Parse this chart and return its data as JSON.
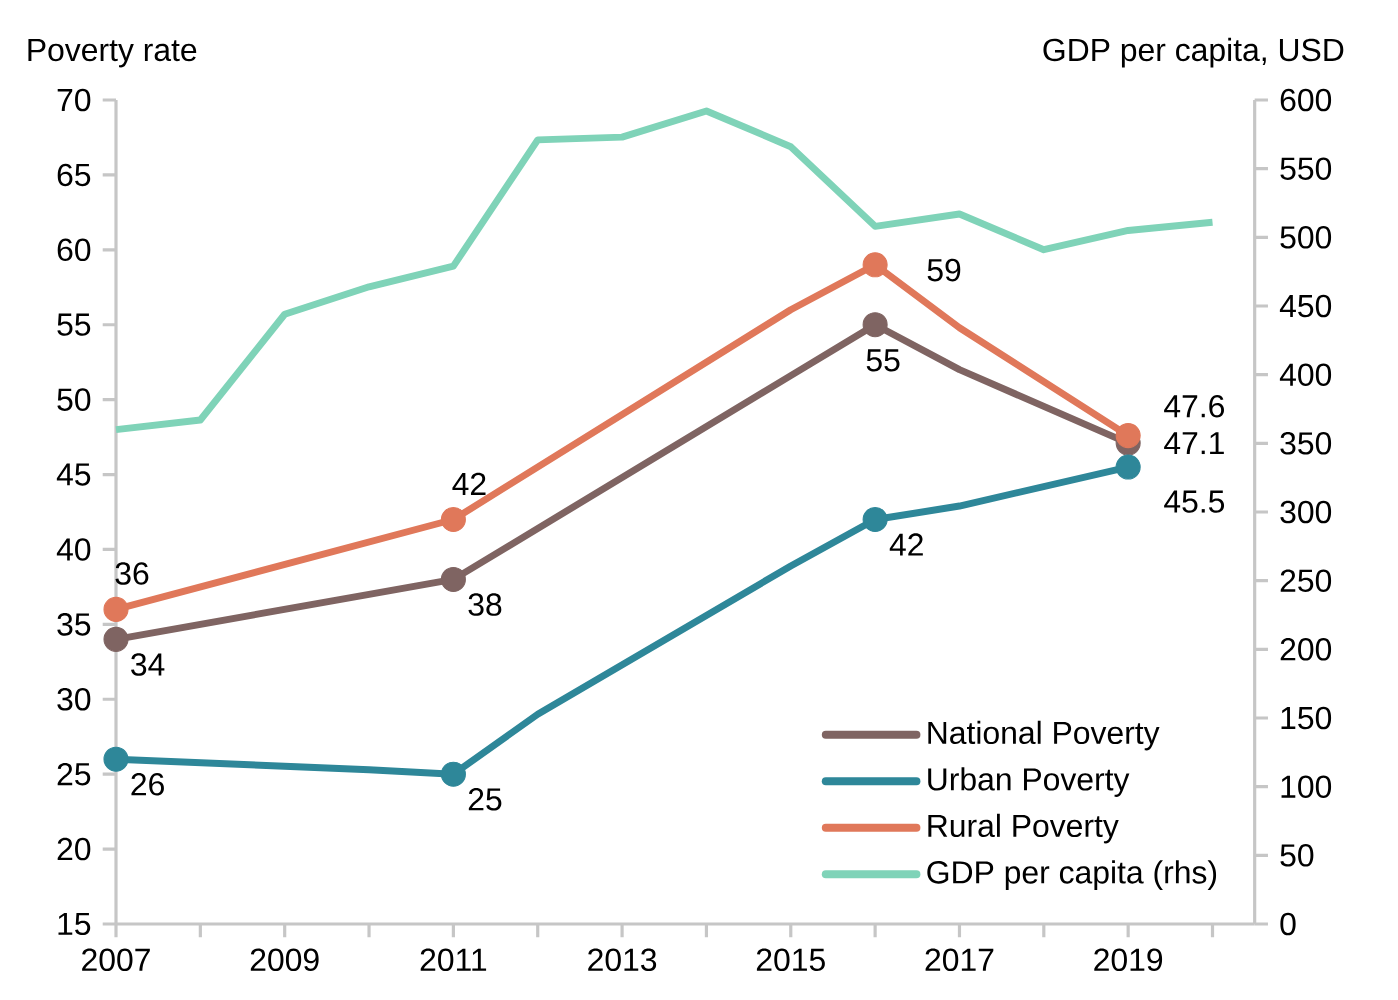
{
  "chart_data": {
    "type": "line",
    "ylabel": "Poverty rate",
    "y2label": "GDP per capita, USD",
    "xlim": [
      2007,
      2020.5
    ],
    "xticks": [
      2007,
      {
        "value": 2008,
        "label": null
      },
      2009,
      {
        "value": 2010,
        "label": null
      },
      2011,
      {
        "value": 2012,
        "label": null
      },
      2013,
      {
        "value": 2014,
        "label": null
      },
      2015,
      {
        "value": 2016,
        "label": null
      },
      2017,
      {
        "value": 2018,
        "label": null
      },
      2019,
      {
        "value": 2020,
        "label": null
      }
    ],
    "ylim": [
      15,
      70
    ],
    "yticks": [
      15,
      20,
      25,
      30,
      35,
      40,
      45,
      50,
      55,
      60,
      65,
      70
    ],
    "y2lim": [
      0,
      600
    ],
    "y2ticks": [
      0,
      50,
      100,
      150,
      200,
      250,
      300,
      350,
      400,
      450,
      500,
      550,
      600
    ],
    "grid": false,
    "legend": "bottom right",
    "line_style": "solid",
    "series": [
      {
        "name": "National Poverty",
        "color": "#7f6462",
        "marker": "circle",
        "x": [
          2007,
          2010,
          2011,
          2015,
          2016,
          2017,
          2019
        ],
        "values": [
          34,
          37,
          38,
          51.6,
          55,
          52,
          47.1
        ],
        "value_labels": [
          "34",
          null,
          "38",
          null,
          "55",
          null,
          "47.1"
        ]
      },
      {
        "name": "Urban Poverty",
        "color": "#2e8799",
        "marker": "circle",
        "x": [
          2007,
          2010,
          2011,
          2012,
          2015,
          2016,
          2017,
          2019
        ],
        "values": [
          26,
          25.3,
          25,
          29,
          38.9,
          42,
          42.9,
          45.5
        ],
        "value_labels": [
          "26",
          null,
          "25",
          null,
          null,
          "42",
          null,
          "45.5"
        ]
      },
      {
        "name": "Rural Poverty",
        "color": "#e0785a",
        "marker": "circle",
        "x": [
          2007,
          2011,
          2015,
          2016,
          2017,
          2019
        ],
        "values": [
          36,
          42,
          56,
          59,
          54.8,
          47.6
        ],
        "value_labels": [
          "36",
          "42",
          null,
          "59",
          null,
          "47.6"
        ]
      },
      {
        "name": "GDP per capita (rhs)",
        "color": "#7fd3b8",
        "axis": "y2",
        "marker": "none",
        "x": [
          2007,
          2008,
          2009,
          2010,
          2011,
          2012,
          2013,
          2014,
          2015,
          2016,
          2017,
          2018,
          2019,
          2020
        ],
        "values": [
          360,
          367,
          444,
          464,
          479,
          571,
          573,
          592,
          566,
          508,
          517,
          491,
          505,
          511
        ]
      }
    ]
  }
}
